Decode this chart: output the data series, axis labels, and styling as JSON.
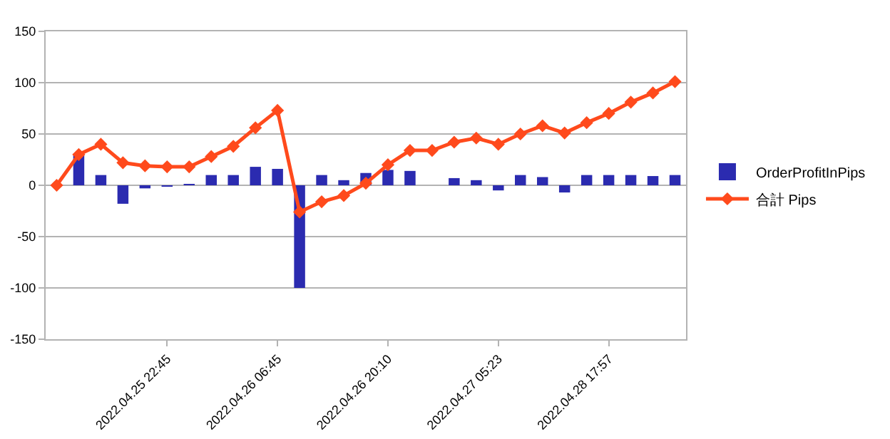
{
  "chart_data": {
    "type": "bar",
    "categories": [
      null,
      null,
      null,
      null,
      null,
      "2022.04.25 22:45",
      null,
      null,
      null,
      null,
      "2022.04.26 06:45",
      null,
      null,
      null,
      null,
      "2022.04.26 20:10",
      null,
      null,
      null,
      null,
      "2022.04.27 05:23",
      null,
      null,
      null,
      null,
      "2022.04.28 17:57",
      null,
      null,
      null
    ],
    "series": [
      {
        "name": "OrderProfitInPips",
        "color": "#2b2bb0",
        "values": [
          0,
          30,
          10,
          -18,
          -3,
          -1,
          1,
          10,
          10,
          18,
          16,
          -100,
          10,
          5,
          12,
          15,
          14,
          0,
          7,
          5,
          -5,
          10,
          8,
          -7,
          10,
          10,
          10,
          9,
          10
        ]
      },
      {
        "name": "合計 Pips",
        "type": "line",
        "color": "#ff4a1c",
        "marker": "diamond",
        "values": [
          0,
          30,
          40,
          22,
          19,
          18,
          18,
          28,
          38,
          56,
          73,
          -26,
          -16,
          -10,
          2,
          20,
          34,
          34,
          42,
          46,
          40,
          50,
          58,
          51,
          61,
          70,
          81,
          90,
          101
        ]
      }
    ],
    "ylim": [
      -150,
      150
    ],
    "yticks": [
      -150,
      -100,
      -50,
      0,
      50,
      100,
      150
    ],
    "grid": "y",
    "legend": "right"
  }
}
